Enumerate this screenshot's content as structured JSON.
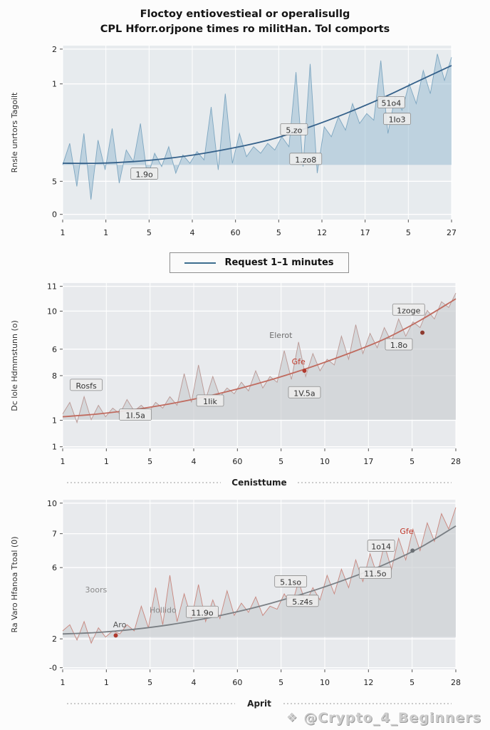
{
  "title": {
    "line1": "Floctoy entiovestieal or operalisullg",
    "line2": "CPL Hforr.orjpone times ro militHan. Tol comports"
  },
  "legend": {
    "label": "Request 1–1 minutes",
    "color": "#3d6e8f"
  },
  "watermark": {
    "icon": "❖",
    "text": "@Crypto_4_Beginners"
  },
  "chart_data": [
    {
      "type": "area",
      "ylabel": "Rnsle unrtors Tagoilt",
      "xlabel": "",
      "xticks": [
        "1",
        "1",
        "5",
        "4",
        "60",
        "5",
        "12",
        "17",
        "5",
        "27"
      ],
      "yticks": [
        {
          "label": "2",
          "f": 0.02
        },
        {
          "label": "1",
          "f": 0.22
        },
        {
          "label": "5",
          "f": 0.78
        },
        {
          "label": "0",
          "f": 0.97
        }
      ],
      "ylim": [
        0,
        10.5
      ],
      "baseline": 3.3,
      "noise": [
        3.3,
        4.6,
        2.0,
        5.2,
        1.2,
        4.8,
        3.0,
        5.5,
        2.2,
        4.2,
        3.5,
        5.8,
        2.5,
        4.0,
        3.2,
        4.4,
        2.8,
        3.9,
        3.4,
        4.1,
        3.6,
        6.8,
        3.0,
        7.6,
        3.4,
        5.2,
        3.8,
        4.4,
        4.0,
        4.6,
        4.2,
        5.0,
        4.4,
        8.9,
        3.2,
        9.4,
        2.8,
        5.6,
        5.0,
        6.2,
        5.4,
        7.0,
        5.8,
        6.4,
        6.0,
        9.6,
        5.2,
        7.4,
        6.6,
        8.2,
        7.0,
        9.0,
        7.6,
        10.0,
        8.4,
        9.8
      ],
      "trend": [
        3.4,
        3.4,
        3.5,
        3.7,
        4.0,
        4.4,
        4.9,
        5.6,
        6.4,
        7.3,
        8.3,
        9.3
      ],
      "colors": {
        "bg": "#e7ebee",
        "area": "#9dbdd4",
        "area_opacity": 0.55,
        "noise_line": "#6f9cba",
        "trend": "#35618a"
      },
      "dots": [],
      "annotations": [
        {
          "text": "1.9o",
          "fx": 0.21,
          "fy": 0.74,
          "boxed": true
        },
        {
          "text": "5.zo",
          "fx": 0.595,
          "fy": 0.485,
          "boxed": true
        },
        {
          "text": "1.zo8",
          "fx": 0.625,
          "fy": 0.655,
          "boxed": true
        },
        {
          "text": "51o4",
          "fx": 0.845,
          "fy": 0.33,
          "boxed": true
        },
        {
          "text": "1Io3",
          "fx": 0.86,
          "fy": 0.425,
          "boxed": true
        }
      ]
    },
    {
      "type": "area",
      "ylabel": "Dc lole Hdmmstunn (o)",
      "xlabel": "Cenisttume",
      "xticks": [
        "1",
        "1",
        "5",
        "4",
        "60",
        "5",
        "10",
        "17",
        "5",
        "28"
      ],
      "yticks": [
        {
          "label": "11",
          "f": 0.02
        },
        {
          "label": "10",
          "f": 0.17
        },
        {
          "label": "6",
          "f": 0.4
        },
        {
          "label": "8",
          "f": 0.56
        },
        {
          "label": "1",
          "f": 0.83
        },
        {
          "label": "1",
          "f": 0.99
        }
      ],
      "ylim": [
        0,
        11.5
      ],
      "baseline": 2.0,
      "noise": [
        2.4,
        3.2,
        1.8,
        3.6,
        2.0,
        3.0,
        2.2,
        2.8,
        2.4,
        3.4,
        2.6,
        3.0,
        2.5,
        3.2,
        2.8,
        3.6,
        3.0,
        5.2,
        3.2,
        5.8,
        3.4,
        5.0,
        3.6,
        4.2,
        3.8,
        4.6,
        4.0,
        5.4,
        4.2,
        5.0,
        4.6,
        6.8,
        4.8,
        7.4,
        5.0,
        6.6,
        5.4,
        6.2,
        5.8,
        7.8,
        6.2,
        8.6,
        6.6,
        8.0,
        7.0,
        8.4,
        7.4,
        9.0,
        7.8,
        8.8,
        8.4,
        9.6,
        9.0,
        10.2,
        9.8,
        10.8
      ],
      "trend": [
        2.2,
        2.4,
        2.7,
        3.1,
        3.6,
        4.2,
        4.9,
        5.7,
        6.6,
        7.6,
        8.9,
        10.4
      ],
      "colors": {
        "bg": "#e8eaed",
        "area": "#c9ccd0",
        "area_opacity": 0.65,
        "noise_line": "#b48b86",
        "trend": "#c06b5f"
      },
      "dots": [
        {
          "fx": 0.615,
          "fy": 0.53,
          "color": "#b03a2e",
          "r": 3
        },
        {
          "fx": 0.915,
          "fy": 0.3,
          "color": "#8e3b30",
          "r": 3
        }
      ],
      "annotations": [
        {
          "text": "Rosfs",
          "fx": 0.06,
          "fy": 0.62,
          "boxed": true
        },
        {
          "text": "1I.5a",
          "fx": 0.185,
          "fy": 0.8,
          "boxed": true
        },
        {
          "text": "1Iik",
          "fx": 0.375,
          "fy": 0.715,
          "boxed": true
        },
        {
          "text": "1V.5a",
          "fx": 0.615,
          "fy": 0.665,
          "boxed": true
        },
        {
          "text": "Gfe",
          "fx": 0.6,
          "fy": 0.475,
          "boxed": false,
          "color": "#c0392b"
        },
        {
          "text": "Elerot",
          "fx": 0.555,
          "fy": 0.315,
          "boxed": false,
          "color": "#6d6d6d"
        },
        {
          "text": "1.8o",
          "fx": 0.855,
          "fy": 0.375,
          "boxed": true
        },
        {
          "text": "1zoge",
          "fx": 0.88,
          "fy": 0.165,
          "boxed": true
        }
      ]
    },
    {
      "type": "area",
      "ylabel": "Ra Varo Hfanoa Ttoal (0)",
      "xlabel": "Aprit",
      "xticks": [
        "1",
        "1",
        "5",
        "4",
        "60",
        "5",
        "10",
        "12",
        "5",
        "28"
      ],
      "yticks": [
        {
          "label": "10",
          "f": 0.02
        },
        {
          "label": "7",
          "f": 0.2
        },
        {
          "label": "6",
          "f": 0.4
        },
        {
          "label": "2",
          "f": 0.82
        },
        {
          "label": "-0",
          "f": 0.99
        }
      ],
      "ylim": [
        -0.5,
        10.5
      ],
      "baseline": 1.6,
      "noise": [
        2.0,
        2.4,
        1.4,
        2.6,
        1.2,
        2.2,
        1.6,
        2.0,
        1.8,
        2.4,
        2.0,
        3.6,
        2.2,
        4.8,
        2.4,
        5.6,
        2.6,
        4.4,
        2.8,
        5.0,
        2.6,
        4.0,
        2.8,
        4.6,
        3.0,
        3.8,
        3.2,
        4.2,
        3.0,
        3.6,
        3.4,
        4.4,
        3.6,
        5.2,
        3.8,
        4.8,
        4.0,
        5.6,
        4.4,
        6.0,
        4.8,
        6.6,
        5.2,
        7.0,
        5.6,
        7.6,
        6.0,
        8.0,
        6.6,
        8.6,
        7.2,
        9.0,
        7.8,
        9.6,
        8.6,
        10.0
      ],
      "trend": [
        1.8,
        1.9,
        2.1,
        2.4,
        2.8,
        3.3,
        3.9,
        4.6,
        5.4,
        6.3,
        7.4,
        8.8
      ],
      "colors": {
        "bg": "#e8eaed",
        "area": "#cdd0d3",
        "area_opacity": 0.7,
        "noise_line": "#c4756b",
        "trend": "#7a7f84"
      },
      "dots": [
        {
          "fx": 0.135,
          "fy": 0.8,
          "color": "#b03a2e",
          "r": 3
        },
        {
          "fx": 0.89,
          "fy": 0.3,
          "color": "#6b7075",
          "r": 3
        }
      ],
      "annotations": [
        {
          "text": "3oors",
          "fx": 0.085,
          "fy": 0.53,
          "boxed": false,
          "color": "#8a8a8a"
        },
        {
          "text": "Aro",
          "fx": 0.145,
          "fy": 0.735,
          "boxed": false,
          "color": "#555555"
        },
        {
          "text": "Hollido",
          "fx": 0.255,
          "fy": 0.65,
          "boxed": false,
          "color": "#8a8a8a"
        },
        {
          "text": "11.9o",
          "fx": 0.355,
          "fy": 0.665,
          "boxed": true
        },
        {
          "text": "5.1so",
          "fx": 0.58,
          "fy": 0.485,
          "boxed": true
        },
        {
          "text": "5.z4s",
          "fx": 0.61,
          "fy": 0.6,
          "boxed": true
        },
        {
          "text": "11.5o",
          "fx": 0.795,
          "fy": 0.435,
          "boxed": true
        },
        {
          "text": "1o14",
          "fx": 0.81,
          "fy": 0.275,
          "boxed": true
        },
        {
          "text": "Gfe",
          "fx": 0.875,
          "fy": 0.185,
          "boxed": false,
          "color": "#c0392b"
        }
      ]
    }
  ]
}
